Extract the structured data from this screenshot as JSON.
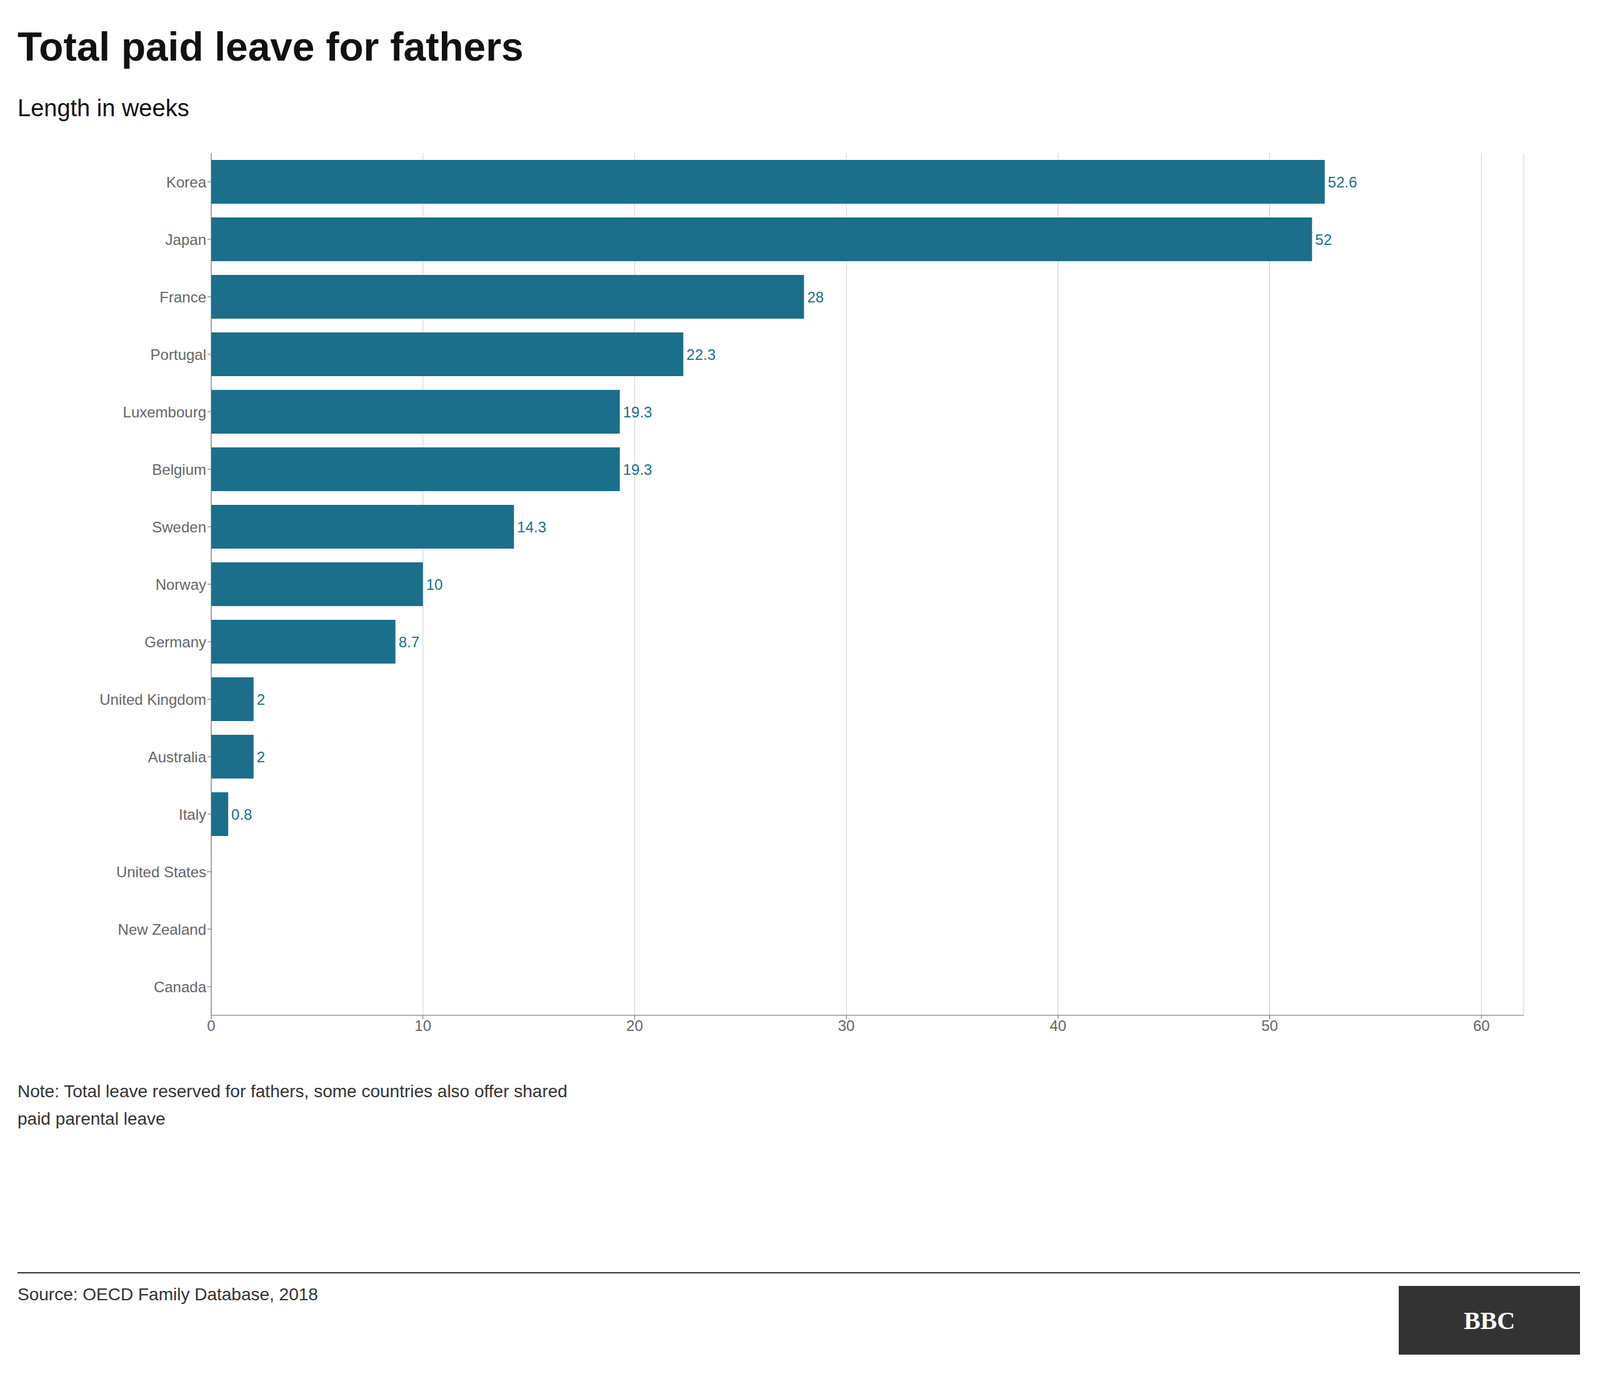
{
  "chart_data": {
    "type": "bar",
    "orientation": "horizontal",
    "title": "Total paid leave for fathers",
    "subtitle": "Length in weeks",
    "categories": [
      "Korea",
      "Japan",
      "France",
      "Portugal",
      "Luxembourg",
      "Belgium",
      "Sweden",
      "Norway",
      "Germany",
      "United Kingdom",
      "Australia",
      "Italy",
      "United States",
      "New Zealand",
      "Canada"
    ],
    "values": [
      52.6,
      52.0,
      28.0,
      22.3,
      19.3,
      19.3,
      14.3,
      10.0,
      8.7,
      2.0,
      2.0,
      0.8,
      0.0,
      0.0,
      0.0
    ],
    "color": "#1b6f8a",
    "xlim": [
      0,
      62
    ],
    "xticks": [
      0,
      10,
      20,
      30,
      40,
      50,
      60
    ],
    "grid": true,
    "data_labels": true,
    "notes": [
      "Note: Total leave reserved for fathers, some countries also offer shared",
      "paid parental leave"
    ],
    "source": "Source: OECD Family Database, 2018",
    "logo": "BBC"
  }
}
